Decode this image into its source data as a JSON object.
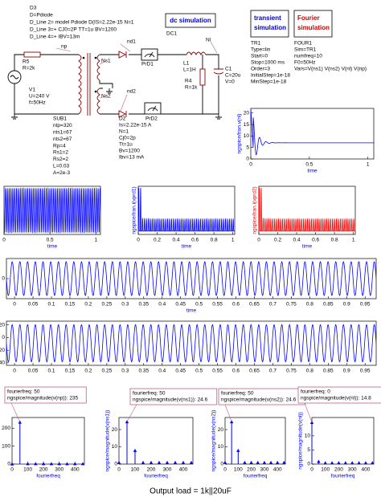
{
  "schematic": {
    "diode_model": [
      "D3",
      "D=Pdiode",
      "D_Line 2= model Pdiode D(IS=2.22e-15 N=1",
      "D_Line 3=+ CJ0=2P TT=1u BV=1200",
      "D_Line 4=+ IBV=13m"
    ],
    "dc_sim": {
      "title": "dc simulation",
      "name": "DC1"
    },
    "tran_sim": {
      "title": [
        "transient",
        "simulation"
      ],
      "params": [
        "TR1",
        "Type=lin",
        "Start=0",
        "Stop=1000 ms",
        "Order=3",
        "InitialStep=1e-18",
        "MinStep=1e-18"
      ]
    },
    "fourier_sim": {
      "title": [
        "Fourier",
        "simulation"
      ],
      "params": [
        "FOUR1",
        "Sim=TR1",
        "numfreq=10",
        "F0=50Hz",
        "Vars=V(ns1) V(ns2) V(nl) V(np)"
      ]
    },
    "np": "np",
    "r5": [
      "R5",
      "R=2k"
    ],
    "v1": [
      "V1",
      "U=240 V",
      "f=50Hz"
    ],
    "ns1": "Ns1",
    "ns2": "Ns2",
    "nd1": "nd1",
    "nd2": "nd2",
    "prd1": "PrD1",
    "prd2": "PrD2",
    "d2": [
      "D2",
      "Is=2.22e-15 A",
      "N=1",
      "Cj0=2p",
      "Tt=1u",
      "Bv=1200",
      "Ibv=13 mA"
    ],
    "l1": [
      "L1",
      "L=1H"
    ],
    "r4": [
      "R4",
      "R=1k"
    ],
    "c1": [
      "C1",
      "C=20u",
      "V=0"
    ],
    "nl": "Nl",
    "sub1": [
      "SUB1",
      "ntp=320",
      "nts1=67",
      "nts2=67",
      "Rp=4",
      "Rs1=2",
      "Rs2=2",
      "L=0.03",
      "A=2e-3"
    ]
  },
  "plots": [
    {
      "type": "waveform",
      "shape": "settle",
      "color": "#0000ff",
      "ylabel": "ngspice/tran.v(nl)",
      "xlabel": "time",
      "xlim": [
        0,
        1.05
      ],
      "xticks": [
        0,
        0.5,
        1
      ],
      "ylim": [
        0,
        22
      ],
      "yticks": [
        0,
        5,
        10,
        15,
        20
      ]
    },
    {
      "type": "waveform",
      "shape": "sine",
      "color": "#0000ff",
      "xlabel": "time",
      "xlim": [
        0,
        1.05
      ],
      "xticks": [
        0,
        0.5,
        1
      ]
    },
    {
      "type": "waveform",
      "shape": "pulse",
      "color": "#0000ff",
      "ylabel": "ngspice/tran.i(vprd1)",
      "xlabel": "time",
      "xlim": [
        0,
        1.02
      ],
      "xticks": [
        0,
        0.2,
        0.4,
        0.6,
        0.8,
        1
      ]
    },
    {
      "type": "waveform",
      "shape": "pulse",
      "color": "#ff0000",
      "ylabel": "ngspice/tran.i(vprd2)",
      "xlabel": "time",
      "xlim": [
        0,
        1.02
      ],
      "xticks": [
        0,
        0.2,
        0.4,
        0.6,
        0.8,
        1
      ]
    },
    {
      "type": "waveform",
      "shape": "wide",
      "color": "#0000ff",
      "xlabel": "time",
      "xlim": [
        -0.022,
        0.98
      ],
      "xticks": [
        0,
        0.05,
        0.1,
        0.15,
        0.2,
        0.25,
        0.3,
        0.35,
        0.4,
        0.45,
        0.5,
        0.55,
        0.6,
        0.65,
        0.7,
        0.75,
        0.8,
        0.85,
        0.9,
        0.95
      ],
      "ylim": [
        -30,
        30
      ],
      "yticks": [
        0
      ]
    },
    {
      "type": "waveform",
      "shape": "wide",
      "color": "#0000ff",
      "xlim": [
        -0.022,
        0.98
      ],
      "xticks": [
        0,
        0.05,
        0.1,
        0.15,
        0.2,
        0.25,
        0.3,
        0.35,
        0.4,
        0.45,
        0.5,
        0.55,
        0.6,
        0.65,
        0.7,
        0.75,
        0.8,
        0.85,
        0.9,
        0.95
      ],
      "ylim": [
        -44,
        26
      ],
      "yticks": [
        20,
        0,
        {
          "value": -20,
          "label": "20"
        },
        {
          "value": -40,
          "label": "40"
        }
      ]
    },
    {
      "type": "stem",
      "color": "#0000ff",
      "xlabel": "fourierfreq",
      "x": [
        0,
        50,
        100,
        150,
        200,
        250,
        300,
        350,
        400,
        450
      ],
      "values": [
        1,
        235,
        3,
        3,
        3,
        3,
        3,
        3,
        3,
        3
      ],
      "xlim": [
        0,
        460
      ],
      "xticks": [
        0,
        100,
        200,
        300,
        400
      ],
      "ylim": [
        0,
        260
      ],
      "yticks": [
        0,
        100,
        200
      ],
      "marker": {
        "index": 1,
        "x_text": "fourierfreq: 50",
        "y_text": "ngspice/magnitude(v(np)): 235"
      }
    },
    {
      "type": "stem",
      "color": "#0000ff",
      "ylabel": "ngspice/magnitude(v(ns1))",
      "xlabel": "fourierfreq",
      "x": [
        0,
        50,
        100,
        150,
        200,
        250,
        300,
        350,
        400,
        450
      ],
      "values": [
        1,
        24.6,
        8,
        1,
        1,
        1,
        1,
        1,
        1,
        1
      ],
      "xlim": [
        0,
        460
      ],
      "xticks": [
        0,
        100,
        200,
        300,
        400
      ],
      "ylim": [
        0,
        27
      ],
      "yticks": [
        0,
        10,
        20
      ],
      "marker": {
        "index": 1,
        "x_text": "fourierfreq: 50",
        "y_text": "ngspice/magnitude(v(ns1)): 24.6"
      }
    },
    {
      "type": "stem",
      "color": "#0000ff",
      "ylabel": "ngspice/magnitude(v(ns2))",
      "xlabel": "fourierfreq",
      "x": [
        0,
        50,
        100,
        150,
        200,
        250,
        300,
        350,
        400,
        450
      ],
      "values": [
        1,
        24.6,
        8,
        1,
        1,
        1,
        1,
        1,
        1,
        1
      ],
      "xlim": [
        0,
        460
      ],
      "xticks": [
        0,
        100,
        200,
        300,
        400
      ],
      "ylim": [
        0,
        27
      ],
      "yticks": [
        0,
        10,
        20
      ],
      "marker": {
        "index": 1,
        "x_text": "fourierfreq: 50",
        "y_text": "ngspice/magnitude(v(ns2)): 24.6"
      }
    },
    {
      "type": "stem",
      "color": "#0000ff",
      "ylabel": "ngspice/magnitude(v(nl))",
      "xlabel": "fourierfreq",
      "x": [
        0,
        50,
        100,
        150,
        200,
        250,
        300,
        350,
        400,
        450
      ],
      "values": [
        14.8,
        1,
        0.5,
        0.5,
        0.5,
        0.5,
        0.5,
        0.5,
        0.5,
        0.5
      ],
      "xlim": [
        0,
        460
      ],
      "xticks": [
        0,
        100,
        200,
        300,
        400
      ],
      "ylim": [
        0,
        16.5
      ],
      "yticks": [
        0,
        5,
        10
      ],
      "marker": {
        "index": 0,
        "x_text": "fourierfreq: 0",
        "y_text": "ngspice/magnitude(v(nl)): 14.8"
      }
    }
  ],
  "caption": "Output load = 1k||20uF"
}
